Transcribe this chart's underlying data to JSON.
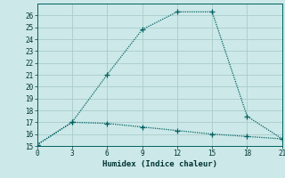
{
  "xlabel": "Humidex (Indice chaleur)",
  "bg_color": "#cce8e8",
  "grid_color": "#aacccc",
  "line_color": "#006060",
  "line1_x": [
    0,
    3,
    6,
    9,
    12,
    15,
    18,
    21
  ],
  "line1_y": [
    15.1,
    17.0,
    21.0,
    24.8,
    26.3,
    26.3,
    17.5,
    15.6
  ],
  "line2_x": [
    0,
    3,
    6,
    9,
    12,
    15,
    18,
    21
  ],
  "line2_y": [
    15.1,
    17.0,
    16.9,
    16.6,
    16.3,
    16.0,
    15.8,
    15.6
  ],
  "xlim": [
    0,
    21
  ],
  "ylim": [
    15,
    27
  ],
  "xticks": [
    0,
    3,
    6,
    9,
    12,
    15,
    18,
    21
  ],
  "yticks": [
    15,
    16,
    17,
    18,
    19,
    20,
    21,
    22,
    23,
    24,
    25,
    26
  ],
  "marker": ".",
  "markersize": 4,
  "linewidth": 0.9,
  "tick_fontsize": 5.5,
  "xlabel_fontsize": 6.5
}
